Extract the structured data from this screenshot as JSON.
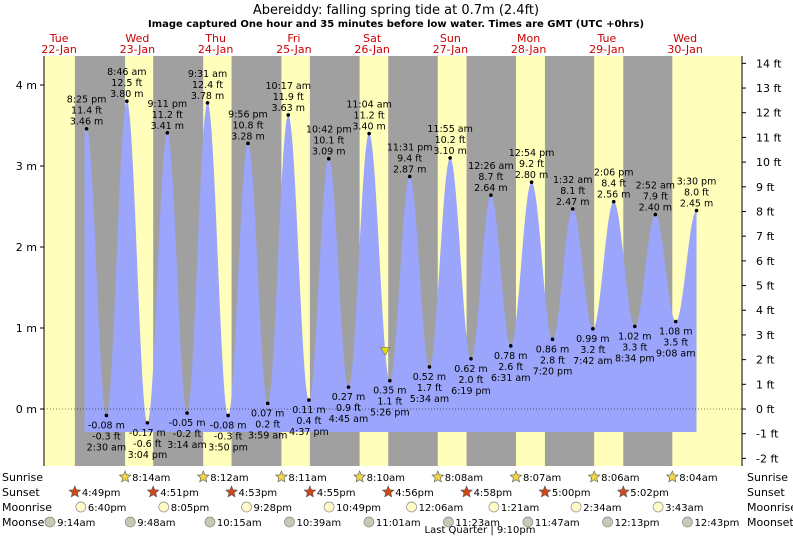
{
  "chart_data": {
    "type": "area",
    "title": "Abereiddy: falling  spring tide at 0.7m (2.4ft)",
    "subtitle": "Image captured One hour and 35 minutes before low water. Times are GMT (UTC +0hrs)",
    "days": [
      {
        "dow": "Tue",
        "date": "22-Jan"
      },
      {
        "dow": "Wed",
        "date": "23-Jan"
      },
      {
        "dow": "Thu",
        "date": "24-Jan"
      },
      {
        "dow": "Fri",
        "date": "25-Jan"
      },
      {
        "dow": "Sat",
        "date": "26-Jan"
      },
      {
        "dow": "Sun",
        "date": "27-Jan"
      },
      {
        "dow": "Mon",
        "date": "28-Jan"
      },
      {
        "dow": "Tue",
        "date": "29-Jan"
      },
      {
        "dow": "Wed",
        "date": "30-Jan"
      }
    ],
    "y_left": {
      "ticks": [
        0,
        1,
        2,
        3,
        4
      ],
      "unit": "m",
      "ylim": [
        -0.35,
        4.35
      ]
    },
    "y_right": {
      "ticks": [
        -2,
        -1,
        0,
        1,
        2,
        3,
        4,
        5,
        6,
        7,
        8,
        9,
        10,
        11,
        12,
        13,
        14
      ],
      "unit": "ft"
    },
    "tides": [
      {
        "time": "8:25 pm",
        "day": 0,
        "hour": 20.42,
        "ft": "11.4 ft",
        "m": 3.46,
        "type": "high"
      },
      {
        "time": "2:30 am",
        "day": 1,
        "hour": 2.5,
        "ft": "-0.3 ft",
        "m": -0.08,
        "type": "low"
      },
      {
        "time": "8:46 am",
        "day": 1,
        "hour": 8.77,
        "ft": "12.5 ft",
        "m": 3.8,
        "type": "high"
      },
      {
        "time": "3:04 pm",
        "day": 1,
        "hour": 15.07,
        "ft": "-0.6 ft",
        "m": -0.17,
        "type": "low"
      },
      {
        "time": "9:11 pm",
        "day": 1,
        "hour": 21.18,
        "ft": "11.2 ft",
        "m": 3.41,
        "type": "high"
      },
      {
        "time": "3:14 am",
        "day": 2,
        "hour": 3.23,
        "ft": "-0.2 ft",
        "m": -0.05,
        "type": "low"
      },
      {
        "time": "9:31 am",
        "day": 2,
        "hour": 9.52,
        "ft": "12.4 ft",
        "m": 3.78,
        "type": "high"
      },
      {
        "time": "3:50 pm",
        "day": 2,
        "hour": 15.83,
        "ft": "-0.3 ft",
        "m": -0.08,
        "type": "low"
      },
      {
        "time": "9:56 pm",
        "day": 2,
        "hour": 21.93,
        "ft": "10.8 ft",
        "m": 3.28,
        "type": "high"
      },
      {
        "time": "3:59 am",
        "day": 3,
        "hour": 3.98,
        "ft": "0.2 ft",
        "m": 0.07,
        "type": "low"
      },
      {
        "time": "10:17 am",
        "day": 3,
        "hour": 10.28,
        "ft": "11.9 ft",
        "m": 3.63,
        "type": "high"
      },
      {
        "time": "4:37 pm",
        "day": 3,
        "hour": 16.62,
        "ft": "0.4 ft",
        "m": 0.11,
        "type": "low"
      },
      {
        "time": "10:42 pm",
        "day": 3,
        "hour": 22.7,
        "ft": "10.1 ft",
        "m": 3.09,
        "type": "high"
      },
      {
        "time": "4:45 am",
        "day": 4,
        "hour": 4.75,
        "ft": "0.9 ft",
        "m": 0.27,
        "type": "low"
      },
      {
        "time": "11:04 am",
        "day": 4,
        "hour": 11.07,
        "ft": "11.2 ft",
        "m": 3.4,
        "type": "high"
      },
      {
        "time": "5:26 pm",
        "day": 4,
        "hour": 17.43,
        "ft": "1.1 ft",
        "m": 0.35,
        "type": "low"
      },
      {
        "time": "11:31 pm",
        "day": 4,
        "hour": 23.52,
        "ft": "9.4 ft",
        "m": 2.87,
        "type": "high"
      },
      {
        "time": "5:34 am",
        "day": 5,
        "hour": 5.57,
        "ft": "1.7 ft",
        "m": 0.52,
        "type": "low"
      },
      {
        "time": "11:55 am",
        "day": 5,
        "hour": 11.92,
        "ft": "10.2 ft",
        "m": 3.1,
        "type": "high"
      },
      {
        "time": "6:19 pm",
        "day": 5,
        "hour": 18.32,
        "ft": "2.0 ft",
        "m": 0.62,
        "type": "low"
      },
      {
        "time": "12:26 am",
        "day": 6,
        "hour": 0.43,
        "ft": "8.7 ft",
        "m": 2.64,
        "type": "high"
      },
      {
        "time": "6:31 am",
        "day": 6,
        "hour": 6.52,
        "ft": "2.6 ft",
        "m": 0.78,
        "type": "low"
      },
      {
        "time": "12:54 pm",
        "day": 6,
        "hour": 12.9,
        "ft": "9.2 ft",
        "m": 2.8,
        "type": "high"
      },
      {
        "time": "7:20 pm",
        "day": 6,
        "hour": 19.33,
        "ft": "2.8 ft",
        "m": 0.86,
        "type": "low"
      },
      {
        "time": "1:32 am",
        "day": 7,
        "hour": 1.53,
        "ft": "8.1 ft",
        "m": 2.47,
        "type": "high"
      },
      {
        "time": "7:42 am",
        "day": 7,
        "hour": 7.7,
        "ft": "3.2 ft",
        "m": 0.99,
        "type": "low"
      },
      {
        "time": "2:06 pm",
        "day": 7,
        "hour": 14.1,
        "ft": "8.4 ft",
        "m": 2.56,
        "type": "high"
      },
      {
        "time": "8:34 pm",
        "day": 7,
        "hour": 20.57,
        "ft": "3.3 ft",
        "m": 1.02,
        "type": "low"
      },
      {
        "time": "2:52 am",
        "day": 8,
        "hour": 2.87,
        "ft": "7.9 ft",
        "m": 2.4,
        "type": "high"
      },
      {
        "time": "9:08 am",
        "day": 8,
        "hour": 9.13,
        "ft": "3.5 ft",
        "m": 1.08,
        "type": "low"
      },
      {
        "time": "3:30 pm",
        "day": 8,
        "hour": 15.5,
        "ft": "8.0 ft",
        "m": 2.45,
        "type": "high"
      }
    ],
    "current_level_m": 0.7,
    "rows": {
      "labels": [
        "Sunrise",
        "Sunset",
        "Moonrise",
        "Moonset"
      ],
      "sunrise": [
        {
          "day": 1,
          "time": "8:14am"
        },
        {
          "day": 2,
          "time": "8:12am"
        },
        {
          "day": 3,
          "time": "8:11am"
        },
        {
          "day": 4,
          "time": "8:10am"
        },
        {
          "day": 5,
          "time": "8:08am"
        },
        {
          "day": 6,
          "time": "8:07am"
        },
        {
          "day": 7,
          "time": "8:06am"
        },
        {
          "day": 8,
          "time": "8:04am"
        }
      ],
      "sunset": [
        {
          "day": 0,
          "time": "4:49pm"
        },
        {
          "day": 1,
          "time": "4:51pm"
        },
        {
          "day": 2,
          "time": "4:53pm"
        },
        {
          "day": 3,
          "time": "4:55pm"
        },
        {
          "day": 4,
          "time": "4:56pm"
        },
        {
          "day": 5,
          "time": "4:58pm"
        },
        {
          "day": 6,
          "time": "5:00pm"
        },
        {
          "day": 7,
          "time": "5:02pm"
        }
      ],
      "moonrise": [
        {
          "day": 0,
          "time": "6:40pm"
        },
        {
          "day": 1,
          "time": "8:05pm"
        },
        {
          "day": 2,
          "time": "9:28pm"
        },
        {
          "day": 3,
          "time": "10:49pm"
        },
        {
          "day": 5,
          "time": "12:06am"
        },
        {
          "day": 6,
          "time": "1:21am"
        },
        {
          "day": 7,
          "time": "2:34am"
        },
        {
          "day": 8,
          "time": "3:43am"
        }
      ],
      "moonset": [
        {
          "day": 0,
          "time": "9:14am"
        },
        {
          "day": 1,
          "time": "9:48am"
        },
        {
          "day": 2,
          "time": "10:15am"
        },
        {
          "day": 3,
          "time": "10:39am"
        },
        {
          "day": 4,
          "time": "11:01am"
        },
        {
          "day": 5,
          "time": "11:23am"
        },
        {
          "day": 6,
          "time": "11:47am"
        },
        {
          "day": 7,
          "time": "12:13pm"
        },
        {
          "day": 8,
          "time": "12:43pm"
        }
      ]
    },
    "moon_phase": "Last Quarter | 9:10pm",
    "colors": {
      "water": "#9aa5fb",
      "day_band": "#ffffbb",
      "night_band": "#a0a0a0",
      "day_label": "#cc0000",
      "marker": "#e6dd00"
    }
  }
}
